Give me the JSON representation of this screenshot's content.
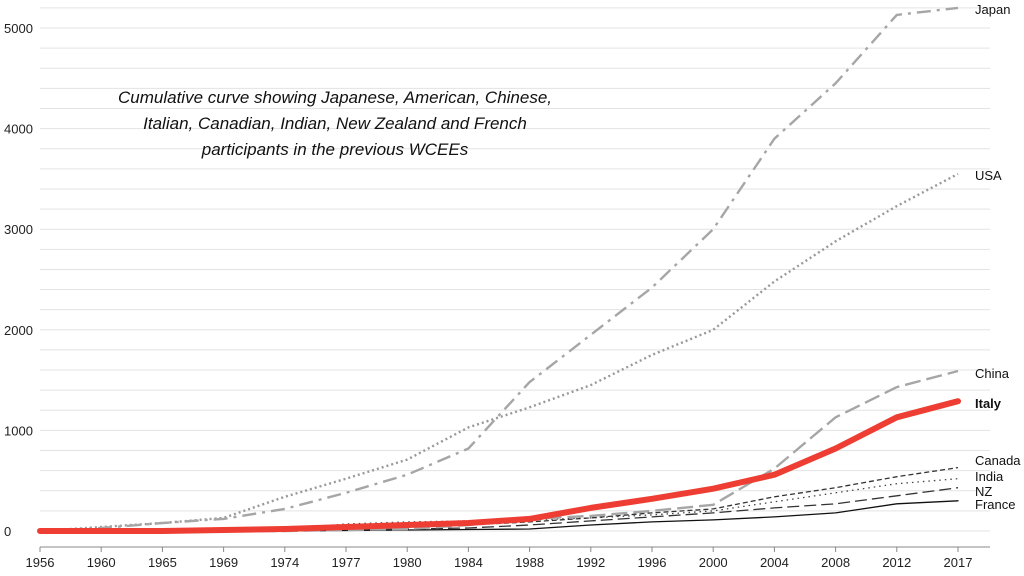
{
  "chart_data": {
    "type": "line",
    "title_lines": [
      "Cumulative curve showing Japanese, American, Chinese,",
      "Italian, Canadian, Indian, New Zealand and French",
      "participants in the previous WCEEs"
    ],
    "x": [
      "1956",
      "1960",
      "1965",
      "1969",
      "1974",
      "1977",
      "1980",
      "1984",
      "1988",
      "1992",
      "1996",
      "2000",
      "2004",
      "2008",
      "2012",
      "2017"
    ],
    "y_ticks": [
      "0",
      "1000",
      "2000",
      "3000",
      "4000",
      "5000"
    ],
    "ylim": [
      0,
      5200
    ],
    "grid": "horizontal",
    "series": [
      {
        "name": "Japan",
        "color": "#a6a6a6",
        "style": "dashdot",
        "values": [
          0,
          30,
          80,
          120,
          220,
          380,
          560,
          820,
          1480,
          1950,
          2420,
          3000,
          3900,
          4450,
          5130,
          5200
        ]
      },
      {
        "name": "USA",
        "color": "#999999",
        "style": "dotted",
        "values": [
          0,
          40,
          80,
          130,
          340,
          520,
          710,
          1030,
          1230,
          1450,
          1750,
          2000,
          2480,
          2880,
          3230,
          3550
        ]
      },
      {
        "name": "China",
        "color": "#a6a6a6",
        "style": "longdash",
        "values": [
          0,
          0,
          0,
          0,
          0,
          10,
          20,
          60,
          120,
          150,
          200,
          260,
          620,
          1130,
          1430,
          1590
        ]
      },
      {
        "name": "Italy",
        "color": "#ee3d32",
        "style": "solid-thick",
        "values": [
          0,
          0,
          0,
          10,
          20,
          40,
          60,
          80,
          120,
          230,
          320,
          420,
          560,
          820,
          1130,
          1290
        ]
      },
      {
        "name": "Canada",
        "color": "#333333",
        "style": "shortdash",
        "values": [
          0,
          0,
          0,
          0,
          10,
          20,
          40,
          60,
          90,
          130,
          180,
          220,
          340,
          430,
          540,
          630
        ]
      },
      {
        "name": "India",
        "color": "#444444",
        "style": "finedot",
        "values": [
          0,
          0,
          0,
          0,
          20,
          70,
          90,
          100,
          110,
          130,
          160,
          200,
          290,
          380,
          470,
          520
        ]
      },
      {
        "name": "NZ",
        "color": "#333333",
        "style": "dash",
        "values": [
          0,
          0,
          0,
          0,
          0,
          10,
          20,
          30,
          60,
          100,
          140,
          180,
          230,
          270,
          350,
          430
        ]
      },
      {
        "name": "France",
        "color": "#111111",
        "style": "solid-thin",
        "values": [
          0,
          0,
          0,
          0,
          0,
          5,
          10,
          15,
          20,
          60,
          90,
          110,
          140,
          180,
          270,
          300
        ]
      }
    ]
  }
}
